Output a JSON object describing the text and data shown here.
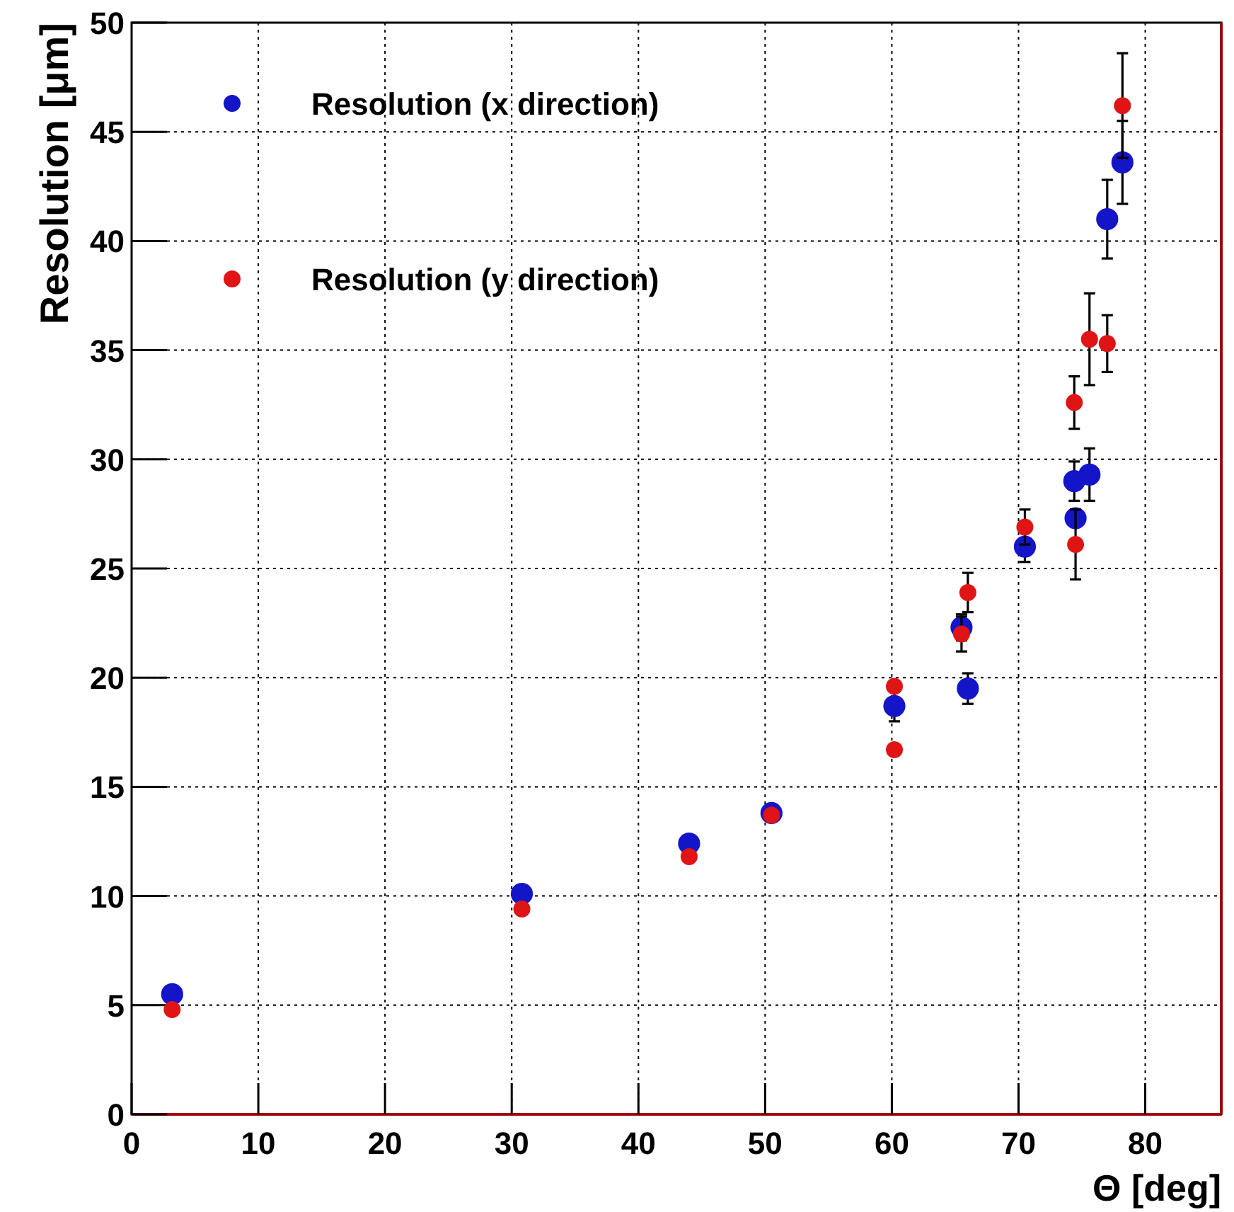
{
  "chart_data": {
    "type": "scatter",
    "xlabel": "Θ [deg]",
    "ylabel": "Resolution [μm]",
    "xlim": [
      0,
      86
    ],
    "ylim": [
      0,
      50
    ],
    "xticks": [
      0,
      10,
      20,
      30,
      40,
      50,
      60,
      70,
      80
    ],
    "yticks": [
      0,
      5,
      10,
      15,
      20,
      25,
      30,
      35,
      40,
      45,
      50
    ],
    "grid": true,
    "legend": "top left",
    "marker": "circle",
    "series": [
      {
        "name": "Resolution (x direction)",
        "color": "#1414c8",
        "x": [
          3.2,
          30.8,
          44.0,
          50.5,
          60.2,
          65.5,
          66.0,
          70.5,
          74.4,
          74.5,
          75.6,
          77.0,
          78.2
        ],
        "values": [
          5.5,
          10.1,
          12.4,
          13.8,
          18.7,
          22.3,
          19.5,
          26.0,
          29.0,
          27.3,
          29.3,
          41.0,
          43.6
        ],
        "errors": [
          null,
          null,
          null,
          null,
          0.7,
          0.6,
          0.7,
          0.7,
          0.9,
          null,
          1.2,
          1.8,
          1.9
        ]
      },
      {
        "name": "Resolution (y direction)",
        "color": "#e01414",
        "x": [
          3.2,
          30.8,
          44.0,
          50.5,
          60.2,
          60.2,
          65.5,
          66.0,
          70.5,
          74.4,
          74.5,
          75.6,
          77.0,
          78.2
        ],
        "values": [
          4.8,
          9.4,
          11.8,
          13.7,
          19.6,
          16.7,
          22.0,
          23.9,
          26.9,
          32.6,
          26.1,
          35.5,
          35.3,
          46.2
        ],
        "errors": [
          null,
          null,
          null,
          null,
          null,
          null,
          0.8,
          0.9,
          0.8,
          1.2,
          1.6,
          2.1,
          1.3,
          2.4
        ]
      }
    ]
  }
}
